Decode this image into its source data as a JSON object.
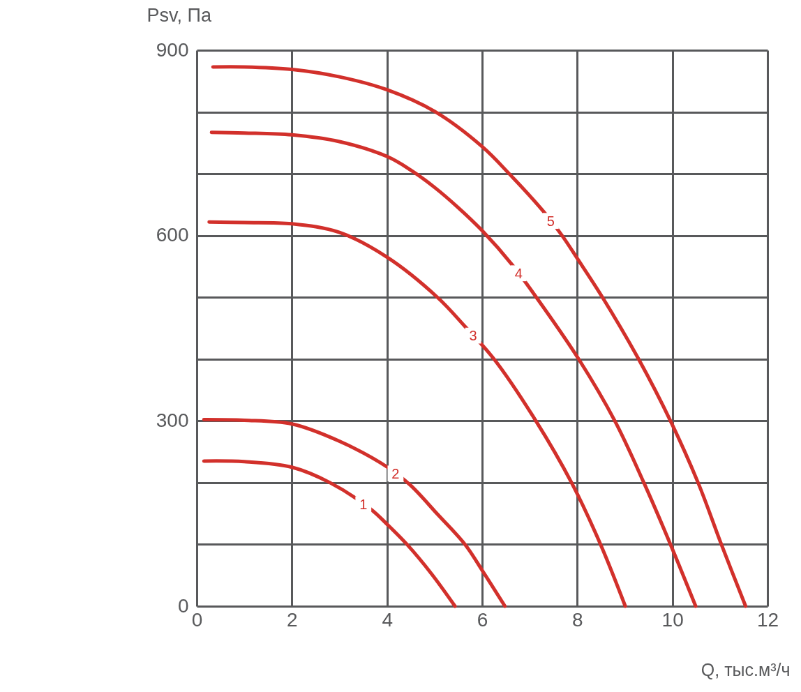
{
  "chart_data": {
    "type": "line",
    "xlabel": "Q, тыс.м³/ч",
    "ylabel": "Psv, Па",
    "xlim": [
      0,
      12
    ],
    "ylim": [
      0,
      900
    ],
    "xticks": [
      0,
      2,
      4,
      6,
      8,
      10,
      12
    ],
    "yticks": [
      0,
      {
        "value": 100,
        "label": null
      },
      {
        "value": 200,
        "label": null
      },
      300,
      {
        "value": 400,
        "label": null
      },
      {
        "value": 500,
        "label": null
      },
      600,
      {
        "value": 700,
        "label": null
      },
      {
        "value": 800,
        "label": null
      },
      900
    ],
    "grid": true,
    "series": [
      {
        "name": "1",
        "color": "#d2302b",
        "x": [
          0.15,
          1,
          2,
          2.8,
          3.66,
          4.01,
          4.42,
          4.94,
          5.43
        ],
        "values": [
          235,
          234,
          225,
          200,
          157,
          132,
          100,
          52,
          0
        ]
      },
      {
        "name": "2",
        "color": "#d2302b",
        "x": [
          0.15,
          1,
          2,
          3,
          4.01,
          4.49,
          5.06,
          5.64,
          6.01,
          6.48
        ],
        "values": [
          302,
          301,
          295,
          267,
          225,
          196,
          149,
          100,
          57,
          0
        ]
      },
      {
        "name": "3",
        "color": "#d2302b",
        "x": [
          0.26,
          1,
          2,
          3,
          4,
          5.06,
          5.65,
          6.25,
          7.13,
          7.88,
          8.49,
          9.01
        ],
        "values": [
          622,
          621,
          619,
          605,
          565,
          500,
          452,
          400,
          300,
          200,
          100,
          0
        ]
      },
      {
        "name": "4",
        "color": "#d2302b",
        "x": [
          0.31,
          1,
          2,
          3,
          4,
          4.5,
          5,
          5.5,
          6,
          6.65,
          7.14,
          8.03,
          8.79,
          9.4,
          9.96,
          10.49
        ],
        "values": [
          767,
          766,
          763,
          752,
          728,
          706,
          678,
          645,
          608,
          551,
          500,
          400,
          300,
          200,
          100,
          0
        ]
      },
      {
        "name": "5",
        "color": "#d2302b",
        "x": [
          0.34,
          1,
          2,
          3,
          4,
          5,
          6,
          6.57,
          7.29,
          7.68,
          8,
          8.53,
          9.29,
          9.96,
          10.54,
          11.03,
          11.54
        ],
        "values": [
          873,
          873,
          869,
          857,
          836,
          801,
          744,
          700,
          639,
          600,
          563,
          500,
          400,
          300,
          200,
          100,
          0
        ]
      }
    ]
  }
}
